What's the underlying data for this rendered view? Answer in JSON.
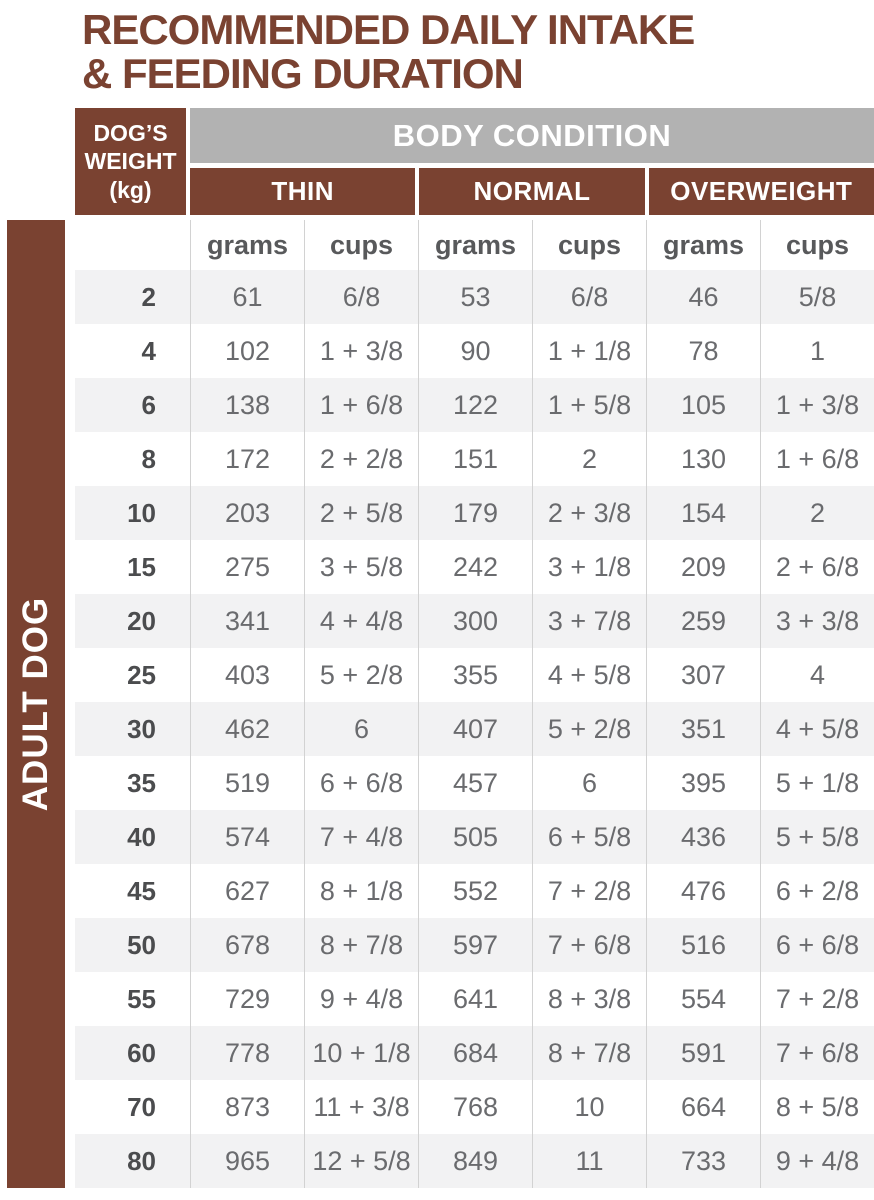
{
  "page_title": {
    "line1": "RECOMMENDED DAILY INTAKE",
    "line2": "& FEEDING DURATION"
  },
  "sidebar": {
    "label": "ADULT DOG"
  },
  "table": {
    "weight_header": {
      "l1": "DOG’S",
      "l2": "WEIGHT",
      "l3": "(kg)"
    },
    "body_condition_label": "BODY CONDITION",
    "groups": [
      {
        "label": "THIN"
      },
      {
        "label": "NORMAL"
      },
      {
        "label": "OVERWEIGHT"
      }
    ],
    "unit_headers": [
      "grams",
      "cups",
      "grams",
      "cups",
      "grams",
      "cups"
    ],
    "rows": [
      {
        "weight": "2",
        "cells": [
          "61",
          "6/8",
          "53",
          "6/8",
          "46",
          "5/8"
        ]
      },
      {
        "weight": "4",
        "cells": [
          "102",
          "1 + 3/8",
          "90",
          "1 + 1/8",
          "78",
          "1"
        ]
      },
      {
        "weight": "6",
        "cells": [
          "138",
          "1 + 6/8",
          "122",
          "1 + 5/8",
          "105",
          "1 + 3/8"
        ]
      },
      {
        "weight": "8",
        "cells": [
          "172",
          "2 + 2/8",
          "151",
          "2",
          "130",
          "1 + 6/8"
        ]
      },
      {
        "weight": "10",
        "cells": [
          "203",
          "2 + 5/8",
          "179",
          "2 + 3/8",
          "154",
          "2"
        ]
      },
      {
        "weight": "15",
        "cells": [
          "275",
          "3 + 5/8",
          "242",
          "3 + 1/8",
          "209",
          "2 + 6/8"
        ]
      },
      {
        "weight": "20",
        "cells": [
          "341",
          "4 + 4/8",
          "300",
          "3 + 7/8",
          "259",
          "3 + 3/8"
        ]
      },
      {
        "weight": "25",
        "cells": [
          "403",
          "5 + 2/8",
          "355",
          "4 + 5/8",
          "307",
          "4"
        ]
      },
      {
        "weight": "30",
        "cells": [
          "462",
          "6",
          "407",
          "5 + 2/8",
          "351",
          "4 + 5/8"
        ]
      },
      {
        "weight": "35",
        "cells": [
          "519",
          "6 + 6/8",
          "457",
          "6",
          "395",
          "5 + 1/8"
        ]
      },
      {
        "weight": "40",
        "cells": [
          "574",
          "7 + 4/8",
          "505",
          "6 + 5/8",
          "436",
          "5 + 5/8"
        ]
      },
      {
        "weight": "45",
        "cells": [
          "627",
          "8 + 1/8",
          "552",
          "7 + 2/8",
          "476",
          "6 + 2/8"
        ]
      },
      {
        "weight": "50",
        "cells": [
          "678",
          "8 + 7/8",
          "597",
          "7 + 6/8",
          "516",
          "6 + 6/8"
        ]
      },
      {
        "weight": "55",
        "cells": [
          "729",
          "9 + 4/8",
          "641",
          "8 + 3/8",
          "554",
          "7 + 2/8"
        ]
      },
      {
        "weight": "60",
        "cells": [
          "778",
          "10 + 1/8",
          "684",
          "8 + 7/8",
          "591",
          "7 + 6/8"
        ]
      },
      {
        "weight": "70",
        "cells": [
          "873",
          "11 + 3/8",
          "768",
          "10",
          "664",
          "8 + 5/8"
        ]
      },
      {
        "weight": "80",
        "cells": [
          "965",
          "12 + 5/8",
          "849",
          "11",
          "733",
          "9 + 4/8"
        ]
      }
    ]
  },
  "colors": {
    "brown": "#7A4231",
    "gray_band": "#B2B2B2",
    "row_stripe": "#F2F2F3",
    "separator": "#D2D2D2",
    "weight_text": "#4B4C4E",
    "data_text": "#6A6B6E"
  }
}
